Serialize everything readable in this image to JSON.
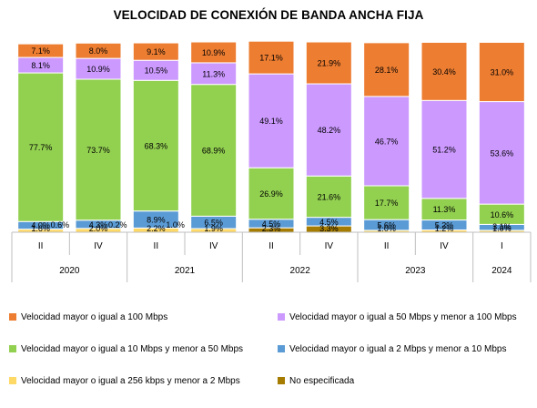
{
  "chart_data": {
    "type": "bar",
    "stacked": true,
    "percent": true,
    "title": "VELOCIDAD DE CONEXIÓN DE BANDA ANCHA FIJA",
    "categories": [
      "II",
      "IV",
      "II",
      "IV",
      "II",
      "IV",
      "II",
      "IV",
      "I"
    ],
    "year_groups": [
      {
        "label": "2020",
        "span": 2
      },
      {
        "label": "2021",
        "span": 2
      },
      {
        "label": "2022",
        "span": 2
      },
      {
        "label": "2023",
        "span": 2
      },
      {
        "label": "2024",
        "span": 1
      }
    ],
    "ylim": [
      0,
      100
    ],
    "grid": false,
    "legend_position": "bottom",
    "series": [
      {
        "name": "No especificada",
        "color": "#A67C00",
        "values": [
          0.0,
          0.0,
          0.0,
          0.0,
          2.3,
          3.3,
          0.0,
          0.0,
          0.0
        ],
        "labels": [
          "",
          "",
          "",
          "",
          "2.3%",
          "3.3%",
          "",
          "",
          ""
        ]
      },
      {
        "name": "Velocidad mayor o igual a 256 kbps y menor a 2 Mbps",
        "color": "#FFD966",
        "values": [
          1.6,
          2.0,
          2.2,
          1.9,
          0.0,
          0.0,
          1.0,
          1.2,
          1.0
        ],
        "labels": [
          "1.6%",
          "2.0%",
          "2.2%",
          "1.9%",
          "",
          "",
          "1.0%",
          "1.2%",
          "1.0%"
        ]
      },
      {
        "name": "Velocidad mayor o igual a 2 Mbps y menor a 10 Mbps",
        "color": "#5B9BD5",
        "values": [
          4.0,
          4.3,
          8.9,
          6.5,
          4.5,
          4.5,
          5.6,
          5.2,
          3.1
        ],
        "labels": [
          "4.0%",
          "4.3%",
          "8.9%",
          "6.5%",
          "4.5%",
          "4.5%",
          "5.6%",
          "5.2%",
          "3.1%"
        ]
      },
      {
        "name": "Velocidad mayor o igual a 10 Mbps y menor a 50 Mbps",
        "color": "#92D050",
        "values": [
          77.7,
          73.7,
          68.3,
          68.9,
          26.9,
          21.6,
          17.7,
          11.3,
          10.6
        ],
        "labels": [
          "77.7%",
          "73.7%",
          "68.3%",
          "68.9%",
          "26.9%",
          "21.6%",
          "17.7%",
          "11.3%",
          "10.6%"
        ]
      },
      {
        "name": "Velocidad mayor o igual a 50 Mbps y menor a 100 Mbps",
        "color": "#CC99FF",
        "values": [
          8.1,
          10.9,
          10.5,
          11.3,
          49.1,
          48.2,
          46.7,
          51.2,
          53.6
        ],
        "labels": [
          "8.1%",
          "10.9%",
          "10.5%",
          "11.3%",
          "49.1%",
          "48.2%",
          "46.7%",
          "51.2%",
          "53.6%"
        ]
      },
      {
        "name": "Velocidad mayor o igual a 100 Mbps",
        "color": "#ED7D31",
        "values": [
          7.1,
          8.0,
          9.1,
          10.9,
          17.1,
          21.9,
          28.1,
          30.4,
          31.0
        ],
        "labels": [
          "7.1%",
          "8.0%",
          "9.1%",
          "10.9%",
          "17.1%",
          "21.9%",
          "28.1%",
          "30.4%",
          "31.0%"
        ]
      }
    ],
    "extra_labels": [
      {
        "category_index": 0,
        "text": "0.6%"
      },
      {
        "category_index": 1,
        "text": "0.2%"
      },
      {
        "category_index": 2,
        "text": "1.0%"
      }
    ],
    "legend": [
      {
        "label": "Velocidad mayor o igual a 100 Mbps",
        "color": "#ED7D31"
      },
      {
        "label": "Velocidad mayor o igual a 50 Mbps y menor a 100 Mbps",
        "color": "#CC99FF"
      },
      {
        "label": "Velocidad mayor o igual a 10 Mbps y menor a 50 Mbps",
        "color": "#92D050"
      },
      {
        "label": "Velocidad mayor o igual a 2 Mbps y menor a 10 Mbps",
        "color": "#5B9BD5"
      },
      {
        "label": "Velocidad mayor o igual a 256 kbps y menor a 2 Mbps",
        "color": "#FFD966"
      },
      {
        "label": "No especificada",
        "color": "#A67C00"
      }
    ]
  }
}
